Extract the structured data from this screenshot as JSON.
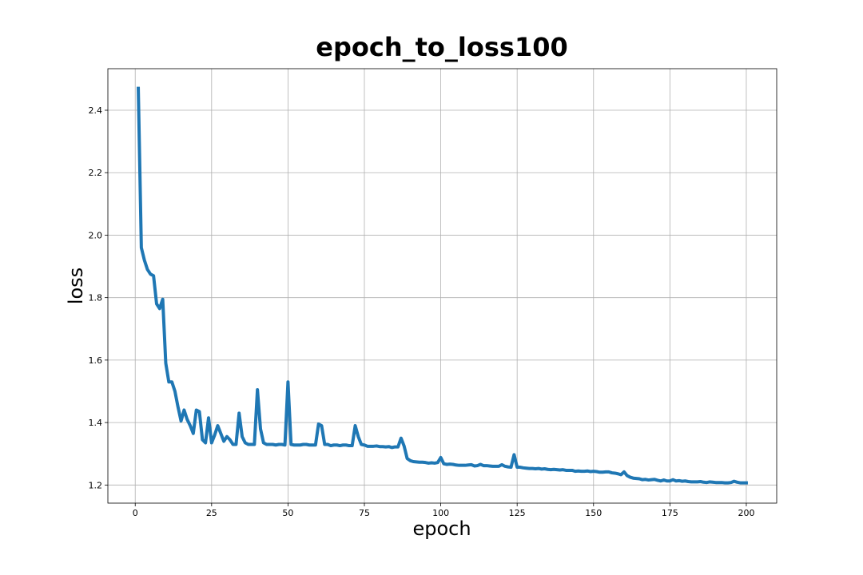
{
  "chart_data": {
    "type": "line",
    "title": "epoch_to_loss100",
    "x_label": "epoch",
    "y_label": "loss",
    "x": [
      1,
      2,
      3,
      4,
      5,
      6,
      7,
      8,
      9,
      10,
      11,
      12,
      13,
      14,
      15,
      16,
      17,
      18,
      19,
      20,
      21,
      22,
      23,
      24,
      25,
      26,
      27,
      28,
      29,
      30,
      31,
      32,
      33,
      34,
      35,
      36,
      37,
      38,
      39,
      40,
      41,
      42,
      43,
      44,
      45,
      46,
      47,
      48,
      49,
      50,
      51,
      52,
      53,
      54,
      55,
      56,
      57,
      58,
      59,
      60,
      61,
      62,
      63,
      64,
      65,
      66,
      67,
      68,
      69,
      70,
      71,
      72,
      73,
      74,
      75,
      76,
      77,
      78,
      79,
      80,
      81,
      82,
      83,
      84,
      85,
      86,
      87,
      88,
      89,
      90,
      91,
      92,
      93,
      94,
      95,
      96,
      97,
      98,
      99,
      100,
      101,
      102,
      103,
      104,
      105,
      106,
      107,
      108,
      109,
      110,
      111,
      112,
      113,
      114,
      115,
      116,
      117,
      118,
      119,
      120,
      121,
      122,
      123,
      124,
      125,
      126,
      127,
      128,
      129,
      130,
      131,
      132,
      133,
      134,
      135,
      136,
      137,
      138,
      139,
      140,
      141,
      142,
      143,
      144,
      145,
      146,
      147,
      148,
      149,
      150,
      151,
      152,
      153,
      154,
      155,
      156,
      157,
      158,
      159,
      160,
      161,
      162,
      163,
      164,
      165,
      166,
      167,
      168,
      169,
      170,
      171,
      172,
      173,
      174,
      175,
      176,
      177,
      178,
      179,
      180,
      181,
      182,
      183,
      184,
      185,
      186,
      187,
      188,
      189,
      190,
      191,
      192,
      193,
      194,
      195,
      196,
      197,
      198,
      199,
      200
    ],
    "series": [
      {
        "color": "#1f77b4",
        "values": [
          2.47,
          1.96,
          1.92,
          1.89,
          1.875,
          1.87,
          1.78,
          1.765,
          1.795,
          1.59,
          1.53,
          1.53,
          1.5,
          1.45,
          1.405,
          1.44,
          1.41,
          1.39,
          1.365,
          1.44,
          1.435,
          1.345,
          1.335,
          1.415,
          1.335,
          1.36,
          1.39,
          1.365,
          1.34,
          1.355,
          1.345,
          1.33,
          1.33,
          1.43,
          1.355,
          1.335,
          1.33,
          1.33,
          1.33,
          1.505,
          1.38,
          1.335,
          1.33,
          1.33,
          1.33,
          1.328,
          1.33,
          1.33,
          1.328,
          1.53,
          1.33,
          1.328,
          1.328,
          1.328,
          1.33,
          1.33,
          1.328,
          1.328,
          1.328,
          1.395,
          1.39,
          1.33,
          1.33,
          1.326,
          1.328,
          1.328,
          1.326,
          1.328,
          1.328,
          1.326,
          1.326,
          1.39,
          1.355,
          1.33,
          1.328,
          1.324,
          1.324,
          1.324,
          1.325,
          1.323,
          1.323,
          1.322,
          1.323,
          1.32,
          1.322,
          1.322,
          1.35,
          1.325,
          1.285,
          1.278,
          1.275,
          1.274,
          1.273,
          1.273,
          1.272,
          1.27,
          1.271,
          1.27,
          1.272,
          1.288,
          1.268,
          1.266,
          1.267,
          1.266,
          1.264,
          1.263,
          1.263,
          1.263,
          1.264,
          1.265,
          1.261,
          1.262,
          1.266,
          1.262,
          1.262,
          1.261,
          1.26,
          1.26,
          1.26,
          1.265,
          1.26,
          1.258,
          1.257,
          1.297,
          1.257,
          1.257,
          1.255,
          1.254,
          1.253,
          1.253,
          1.252,
          1.253,
          1.251,
          1.252,
          1.25,
          1.249,
          1.25,
          1.249,
          1.248,
          1.249,
          1.247,
          1.247,
          1.247,
          1.244,
          1.245,
          1.244,
          1.244,
          1.245,
          1.243,
          1.244,
          1.243,
          1.241,
          1.241,
          1.242,
          1.242,
          1.239,
          1.238,
          1.236,
          1.233,
          1.242,
          1.23,
          1.225,
          1.222,
          1.221,
          1.22,
          1.217,
          1.218,
          1.216,
          1.217,
          1.218,
          1.215,
          1.213,
          1.216,
          1.213,
          1.213,
          1.217,
          1.213,
          1.214,
          1.212,
          1.213,
          1.211,
          1.21,
          1.21,
          1.21,
          1.211,
          1.209,
          1.208,
          1.21,
          1.209,
          1.208,
          1.208,
          1.208,
          1.207,
          1.207,
          1.208,
          1.212,
          1.209,
          1.207,
          1.207,
          1.207
        ]
      }
    ],
    "xlim": [
      -8.95,
      209.95
    ],
    "ylim": [
      1.142,
      2.533
    ],
    "xticks": [
      0,
      25,
      50,
      75,
      100,
      125,
      150,
      175,
      200
    ],
    "yticks": [
      1.2,
      1.4,
      1.6,
      1.8,
      {
        "value": 2,
        "label": "2.0"
      },
      2.2,
      2.4
    ],
    "grid": true
  }
}
